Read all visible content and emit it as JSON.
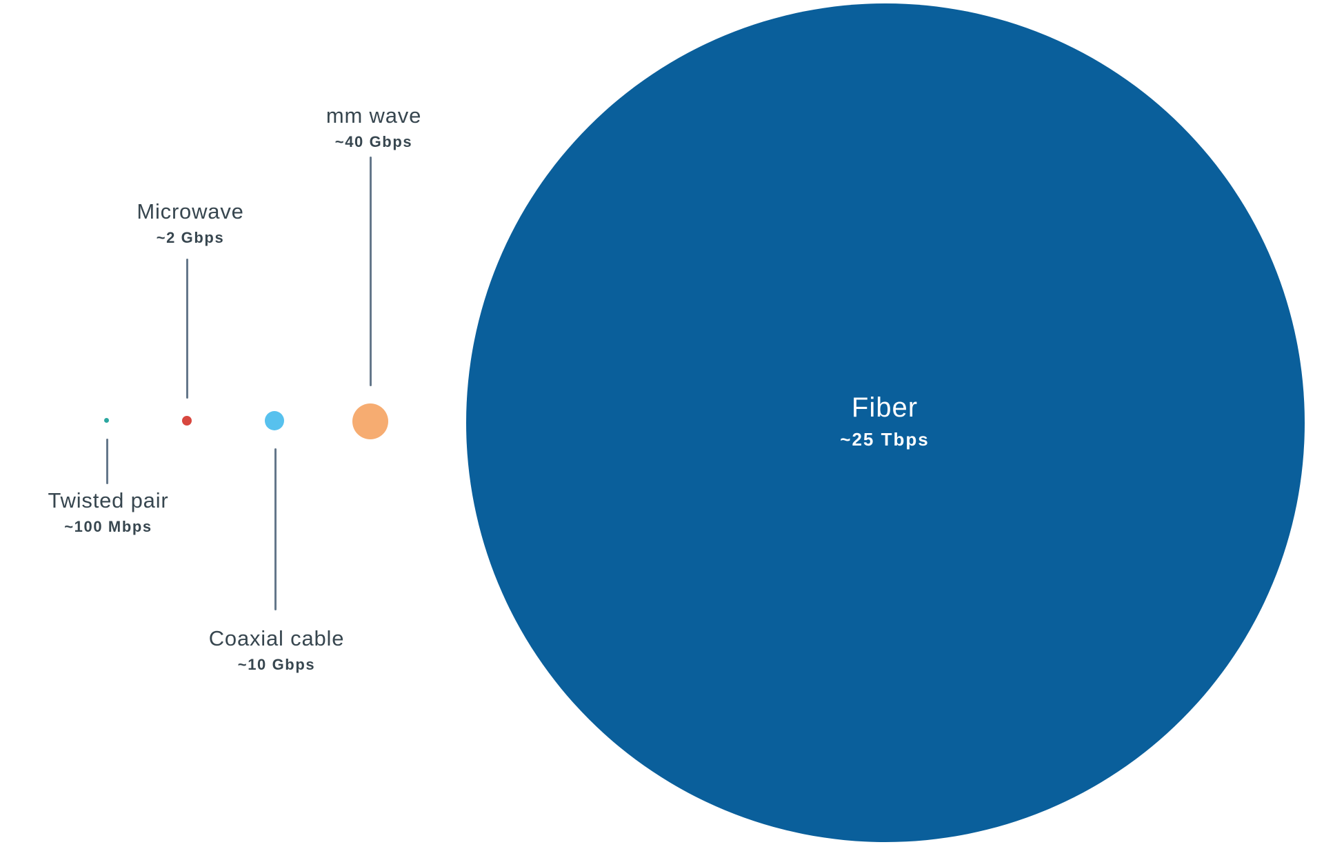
{
  "chart_data": {
    "type": "bubble",
    "title": "",
    "legend": "none",
    "grid": false,
    "background": "#ffffff",
    "items": [
      {
        "label": "Twisted pair",
        "value_label": "~100 Mbps",
        "value_gbps": 0.1,
        "color": "#2ba7a0"
      },
      {
        "label": "Microwave",
        "value_label": "~2 Gbps",
        "value_gbps": 2,
        "color": "#d8473f"
      },
      {
        "label": "Coaxial cable",
        "value_label": "~10 Gbps",
        "value_gbps": 10,
        "color": "#57c1ee"
      },
      {
        "label": "mm wave",
        "value_label": "~40 Gbps",
        "value_gbps": 40,
        "color": "#f6ac71"
      },
      {
        "label": "Fiber",
        "value_label": "~25 Tbps",
        "value_gbps": 25000,
        "color": "#0a5f9b"
      }
    ]
  },
  "colors": {
    "label_text": "#37464f",
    "fiber_label_text": "#ffffff",
    "leader_line": "#64778a",
    "background": "#ffffff"
  }
}
